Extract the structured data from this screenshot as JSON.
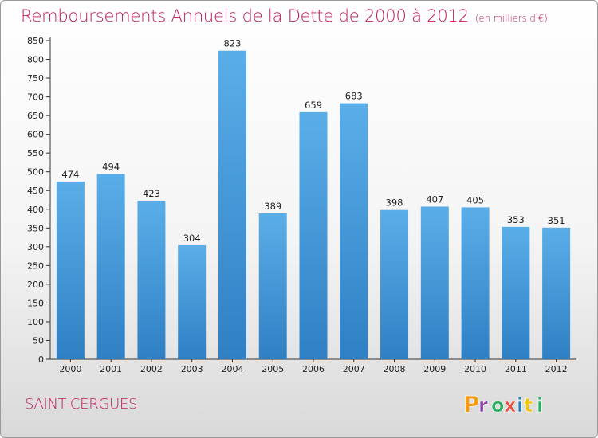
{
  "header": {
    "title": "Remboursements Annuels de la Dette de 2000 à 2012",
    "unit": "(en milliers d'€)"
  },
  "footer": {
    "commune": "SAINT-CERGUES",
    "logo_text": "Proxiti"
  },
  "colors": {
    "title": "#c2185b",
    "bar_top": "#5aaee8",
    "bar_bottom": "#2f80c4",
    "axis": "#333333",
    "logo_letters": [
      "#f39c12",
      "#8e44ad",
      "#27ae60",
      "#e74c3c",
      "#2980b9",
      "#f1c40f",
      "#27ae60"
    ]
  },
  "chart_data": {
    "type": "bar",
    "title": "Remboursements Annuels de la Dette de 2000 à 2012",
    "subtitle": "(en milliers d'€)",
    "categories": [
      "2000",
      "2001",
      "2002",
      "2003",
      "2004",
      "2005",
      "2006",
      "2007",
      "2008",
      "2009",
      "2010",
      "2011",
      "2012"
    ],
    "values": [
      474,
      494,
      423,
      304,
      823,
      389,
      659,
      683,
      398,
      407,
      405,
      353,
      351
    ],
    "ylim": [
      0,
      850
    ],
    "yticks": [
      0,
      50,
      100,
      150,
      200,
      250,
      300,
      350,
      400,
      450,
      500,
      550,
      600,
      650,
      700,
      750,
      800,
      850
    ],
    "grid": false,
    "legend": "none"
  }
}
